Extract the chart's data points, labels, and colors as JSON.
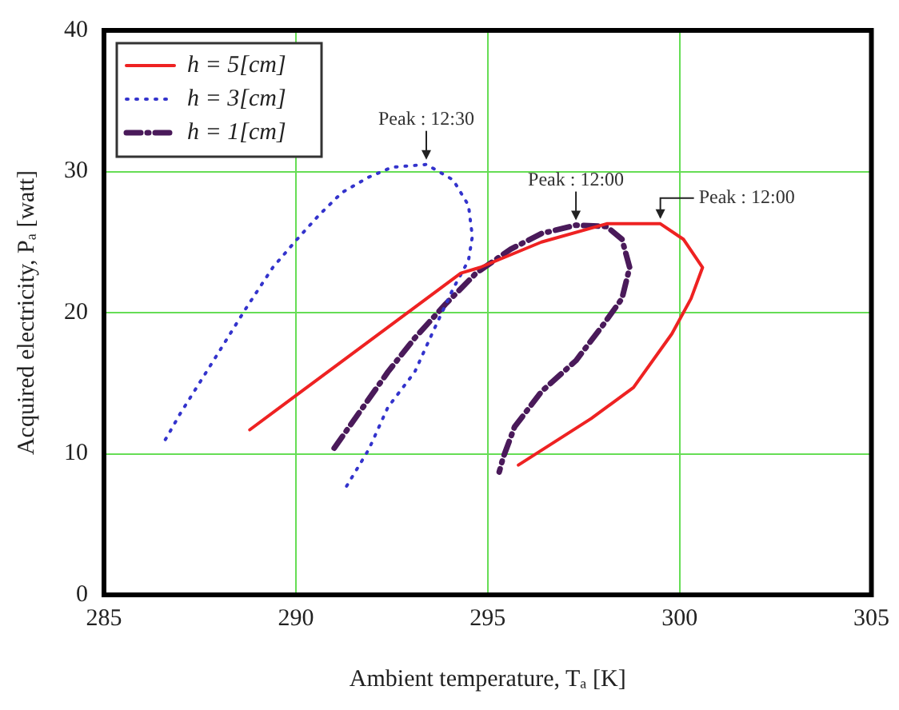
{
  "chart_data": {
    "type": "line",
    "xlabel": "Ambient temperature, Tₐ [K]",
    "ylabel": "Acquired electricity, Pₐ [watt]",
    "xlim": [
      285,
      305
    ],
    "xticks": [
      285,
      290,
      295,
      300,
      305
    ],
    "ylim": [
      0,
      40
    ],
    "yticks": [
      0,
      10,
      20,
      30,
      40
    ],
    "grid": true,
    "legend": "top left",
    "marker": "none",
    "series": [
      {
        "name": "h = 5[cm]",
        "color": "#ee2222",
        "line_style": "solid",
        "x": [
          288.8,
          294.3,
          294.8,
          296.4,
          298.1,
          299.5,
          300.1,
          300.6,
          300.3,
          299.8,
          298.8,
          297.7,
          295.8
        ],
        "values": [
          11.7,
          22.8,
          23.2,
          25.0,
          26.3,
          26.3,
          25.2,
          23.2,
          21.0,
          18.5,
          14.7,
          12.5,
          9.2
        ]
      },
      {
        "name": "h = 3[cm]",
        "color": "#3333cc",
        "line_style": "dotted",
        "x": [
          286.6,
          287.0,
          287.9,
          288.7,
          289.4,
          290.0,
          290.6,
          291.2,
          291.9,
          292.5,
          293.4,
          294.1,
          294.5,
          294.6,
          294.5,
          294.1,
          293.6,
          293.1,
          292.4,
          291.9,
          291.3
        ],
        "values": [
          11.0,
          12.9,
          16.8,
          20.3,
          23.2,
          25.1,
          26.9,
          28.5,
          29.6,
          30.3,
          30.5,
          29.4,
          27.6,
          25.4,
          23.7,
          21.7,
          18.8,
          15.8,
          13.3,
          10.3,
          7.6
        ]
      },
      {
        "name": "h = 1[cm]",
        "color": "#4a1a5a",
        "line_style": "dashed",
        "x": [
          291.0,
          292.4,
          293.1,
          293.9,
          294.7,
          295.6,
          296.4,
          297.3,
          298.1,
          298.5,
          298.7,
          298.5,
          298.0,
          297.3,
          296.4,
          295.7,
          295.4,
          295.3
        ],
        "values": [
          10.4,
          15.8,
          18.2,
          20.6,
          22.8,
          24.5,
          25.6,
          26.2,
          26.1,
          25.2,
          23.2,
          21.0,
          19.1,
          16.6,
          14.4,
          11.9,
          9.7,
          8.7
        ]
      }
    ],
    "annotations": [
      {
        "text": "Peak : 12:30",
        "x": 293.4,
        "y": 30.5
      },
      {
        "text": "Peak : 12:00",
        "x": 297.3,
        "y": 26.2
      },
      {
        "text": "Peak : 12:00",
        "x": 299.5,
        "y": 26.3
      }
    ]
  }
}
